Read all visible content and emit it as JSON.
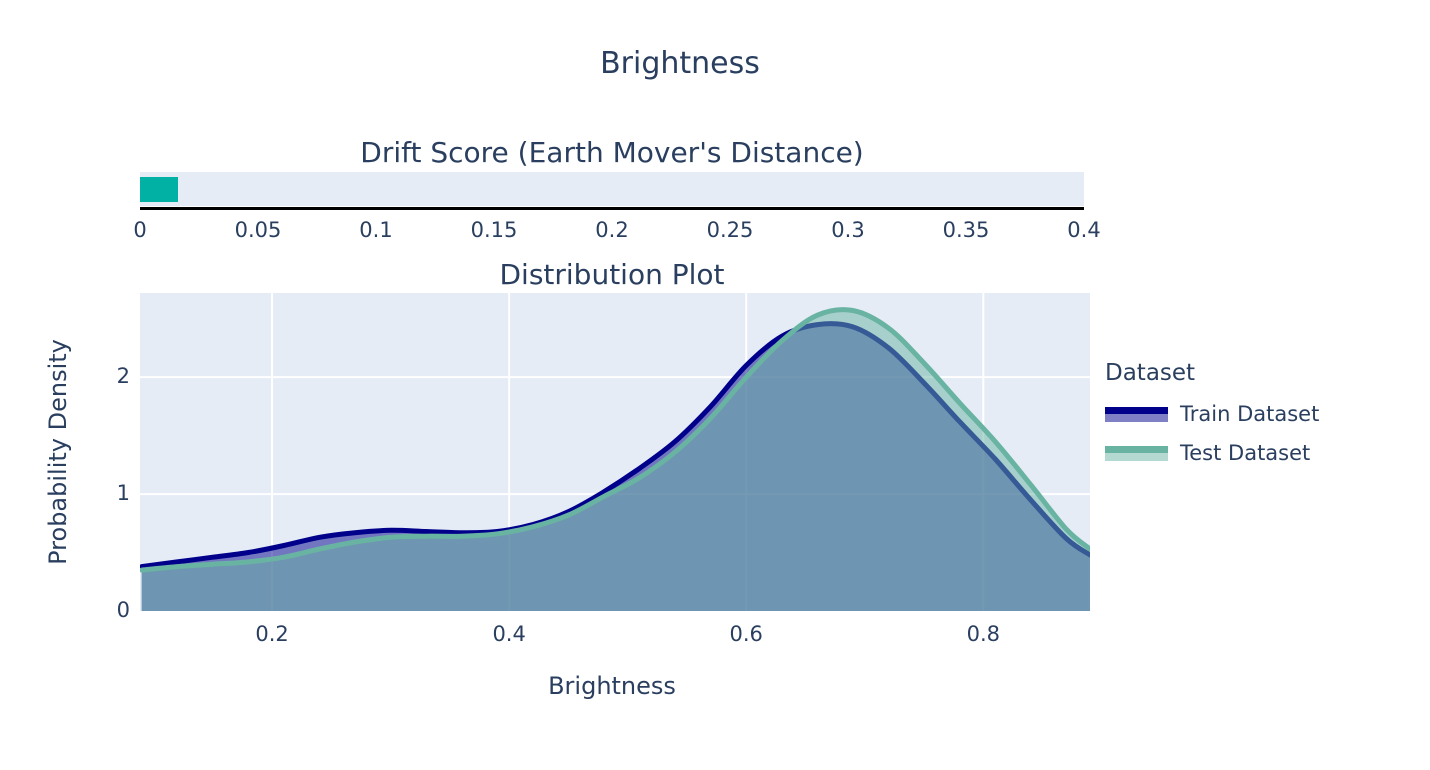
{
  "page": {
    "title": "Brightness"
  },
  "colors": {
    "text": "#2a3f5f",
    "plot_background": "#e5ecf6",
    "gridline": "#ffffff",
    "drift_bar": "#00b1a4",
    "axis_line": "#000000",
    "train_line": "#00008b",
    "train_fill": "rgba(0,0,139,0.5)",
    "test_line": "#69b3a2",
    "test_fill": "rgba(105,179,162,0.5)"
  },
  "legend": {
    "title": "Dataset",
    "items": [
      "Train Dataset",
      "Test Dataset"
    ]
  },
  "chart_data": [
    {
      "type": "bar",
      "title": "Drift Score (Earth Mover's Distance)",
      "orientation": "horizontal",
      "value": 0.016,
      "xlim": [
        0,
        0.4
      ],
      "x_ticks": [
        0,
        0.05,
        0.1,
        0.15,
        0.2,
        0.25,
        0.3,
        0.35,
        0.4
      ],
      "bar_color": "#00b1a4",
      "track_color": "#e5ecf6"
    },
    {
      "type": "area",
      "title": "Distribution Plot",
      "xlabel": "Brightness",
      "ylabel": "Probability Density",
      "xlim": [
        0.0886,
        0.89
      ],
      "ylim": [
        0,
        2.72
      ],
      "x_ticks": [
        0.2,
        0.4,
        0.6,
        0.8
      ],
      "y_ticks": [
        0,
        1,
        2
      ],
      "grid": true,
      "legend_position": "right",
      "x": [
        0.09,
        0.12,
        0.15,
        0.18,
        0.21,
        0.24,
        0.27,
        0.3,
        0.33,
        0.36,
        0.39,
        0.42,
        0.45,
        0.48,
        0.51,
        0.54,
        0.57,
        0.6,
        0.63,
        0.66,
        0.69,
        0.72,
        0.75,
        0.78,
        0.81,
        0.84,
        0.87,
        0.89
      ],
      "series": [
        {
          "name": "Train Dataset",
          "line_color": "#00008b",
          "fill_color": "rgba(0,0,139,0.5)",
          "values": [
            0.38,
            0.42,
            0.46,
            0.5,
            0.56,
            0.63,
            0.67,
            0.69,
            0.68,
            0.67,
            0.68,
            0.74,
            0.85,
            1.02,
            1.22,
            1.45,
            1.75,
            2.1,
            2.35,
            2.45,
            2.43,
            2.25,
            1.95,
            1.62,
            1.3,
            0.95,
            0.62,
            0.48
          ]
        },
        {
          "name": "Test Dataset",
          "line_color": "#69b3a2",
          "fill_color": "rgba(105,179,162,0.5)",
          "values": [
            0.35,
            0.38,
            0.4,
            0.42,
            0.46,
            0.53,
            0.59,
            0.63,
            0.64,
            0.64,
            0.66,
            0.72,
            0.82,
            0.98,
            1.14,
            1.36,
            1.65,
            2.0,
            2.31,
            2.53,
            2.57,
            2.42,
            2.12,
            1.78,
            1.45,
            1.08,
            0.7,
            0.53
          ]
        }
      ]
    }
  ]
}
